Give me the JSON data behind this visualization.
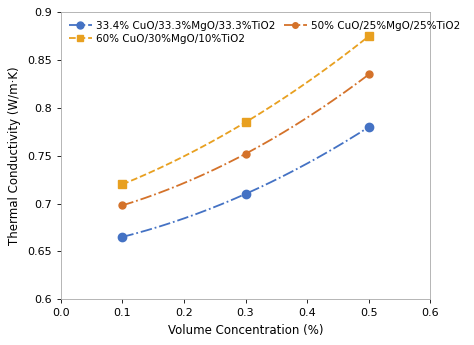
{
  "series": [
    {
      "label": "33.4% CuO/33.3%MgO/33.3%TiO2",
      "x": [
        0.1,
        0.3,
        0.5
      ],
      "y": [
        0.665,
        0.71,
        0.78
      ],
      "color": "#4472C4",
      "linestyle": "-.",
      "marker": "o",
      "linewidth": 1.3,
      "markersize": 6,
      "dashes": null
    },
    {
      "label": "50% CuO/25%MgO/25%TiO2",
      "x": [
        0.1,
        0.3,
        0.5
      ],
      "y": [
        0.698,
        0.752,
        0.835
      ],
      "color": "#D4722A",
      "linestyle": "-.",
      "marker": "o",
      "linewidth": 1.3,
      "markersize": 5,
      "dashes": null
    },
    {
      "label": "60% CuO/30%MgO/10%TiO2",
      "x": [
        0.1,
        0.3,
        0.5
      ],
      "y": [
        0.72,
        0.785,
        0.875
      ],
      "color": "#E8A020",
      "linestyle": "--",
      "marker": "s",
      "linewidth": 1.3,
      "markersize": 6,
      "dashes": null
    }
  ],
  "legend_order": [
    0,
    2,
    1
  ],
  "legend_ncol": 2,
  "legend_labels": [
    "33.4% CuO/33.3%MgO/33.3%TiO2",
    "50% CuO/25%MgO/25%TiO2",
    "60% CuO/30%MgO/10%TiO2"
  ],
  "xlabel": "Volume Concentration (%)",
  "ylabel": "Thermal Conductivity (W/m·K)",
  "xlim": [
    0,
    0.6
  ],
  "ylim": [
    0.6,
    0.9
  ],
  "xticks": [
    0,
    0.1,
    0.2,
    0.3,
    0.4,
    0.5,
    0.6
  ],
  "yticks": [
    0.6,
    0.65,
    0.7,
    0.75,
    0.8,
    0.85,
    0.9
  ],
  "background_color": "#ffffff",
  "fontsize": 8.5,
  "tick_fontsize": 8,
  "label_fontsize": 8.5,
  "legend_fontsize": 7.5
}
